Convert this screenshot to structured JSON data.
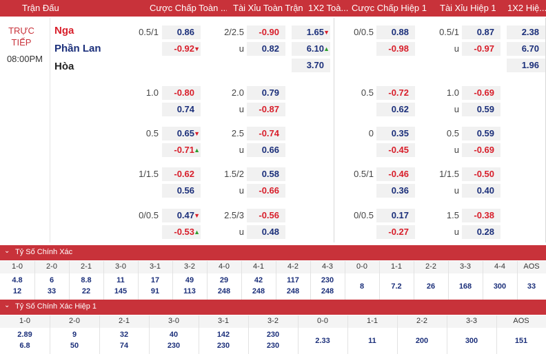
{
  "header": {
    "match": "Trận Đấu",
    "ah_ft": "Cược Chấp Toàn ...",
    "ou_ft": "Tài Xỉu Toàn Trận",
    "x12_ft": "1X2 Toà...",
    "ah_h1": "Cược Chấp Hiệp 1",
    "ou_h1": "Tài Xỉu Hiệp 1",
    "x12_h1": "1X2 Hiệ..."
  },
  "match": {
    "status_line1": "TRỰC",
    "status_line2": "TIẾP",
    "time": "08:00PM",
    "home": "Nga",
    "away": "Phần Lan",
    "draw": "Hòa",
    "x12_ft": [
      "1.65",
      "6.10",
      "3.70"
    ],
    "x12_h1": [
      "2.38",
      "6.70",
      "1.96"
    ],
    "rows": [
      {
        "ah_ft_line": "0.5/1",
        "ah_ft": [
          "0.86",
          "-0.92"
        ],
        "ou_ft_line": "2/2.5",
        "ou_ft": [
          "-0.90",
          "0.82"
        ],
        "ah_h1_line": "0/0.5",
        "ah_h1": [
          "0.88",
          "-0.98"
        ],
        "ou_h1_line": "0.5/1",
        "ou_h1": [
          "0.87",
          "-0.97"
        ]
      },
      {
        "ah_ft_line": "1.0",
        "ah_ft": [
          "-0.80",
          "0.74"
        ],
        "ou_ft_line": "2.0",
        "ou_ft": [
          "0.79",
          "-0.87"
        ],
        "ah_h1_line": "0.5",
        "ah_h1": [
          "-0.72",
          "0.62"
        ],
        "ou_h1_line": "1.0",
        "ou_h1": [
          "-0.69",
          "0.59"
        ]
      },
      {
        "ah_ft_line": "0.5",
        "ah_ft": [
          "0.65",
          "-0.71"
        ],
        "ou_ft_line": "2.5",
        "ou_ft": [
          "-0.74",
          "0.66"
        ],
        "ah_h1_line": "0",
        "ah_h1": [
          "0.35",
          "-0.45"
        ],
        "ou_h1_line": "0.5",
        "ou_h1": [
          "0.59",
          "-0.69"
        ]
      },
      {
        "ah_ft_line": "1/1.5",
        "ah_ft": [
          "-0.62",
          "0.56"
        ],
        "ou_ft_line": "1.5/2",
        "ou_ft": [
          "0.58",
          "-0.66"
        ],
        "ah_h1_line": "0.5/1",
        "ah_h1": [
          "-0.46",
          "0.36"
        ],
        "ou_h1_line": "1/1.5",
        "ou_h1": [
          "-0.50",
          "0.40"
        ]
      },
      {
        "ah_ft_line": "0/0.5",
        "ah_ft": [
          "0.47",
          "-0.53"
        ],
        "ou_ft_line": "2.5/3",
        "ou_ft": [
          "-0.56",
          "0.48"
        ],
        "ah_h1_line": "0/0.5",
        "ah_h1": [
          "0.17",
          "-0.27"
        ],
        "ou_h1_line": "1.5",
        "ou_h1": [
          "-0.38",
          "0.28"
        ]
      }
    ],
    "under_label": "u"
  },
  "correct_score": {
    "title": "Tỷ Số Chính Xác",
    "cols": [
      "1-0",
      "2-0",
      "2-1",
      "3-0",
      "3-1",
      "3-2",
      "4-0",
      "4-1",
      "4-2",
      "4-3",
      "0-0",
      "1-1",
      "2-2",
      "3-3",
      "4-4",
      "AOS"
    ],
    "home": [
      "4.8",
      "6",
      "8.8",
      "11",
      "17",
      "49",
      "29",
      "42",
      "117",
      "230",
      "8",
      "7.2",
      "26",
      "168",
      "300",
      "33"
    ],
    "away": [
      "12",
      "33",
      "22",
      "145",
      "91",
      "113",
      "248",
      "248",
      "248",
      "248"
    ]
  },
  "correct_score_h1": {
    "title": "Tỷ Số Chính Xác Hiệp 1",
    "cols": [
      "1-0",
      "2-0",
      "2-1",
      "3-0",
      "3-1",
      "3-2",
      "0-0",
      "1-1",
      "2-2",
      "3-3",
      "AOS"
    ],
    "home": [
      "2.89",
      "9",
      "32",
      "40",
      "142",
      "230",
      "2.33",
      "11",
      "200",
      "300",
      "151"
    ],
    "away": [
      "6.8",
      "50",
      "74",
      "230",
      "230",
      "230"
    ]
  }
}
